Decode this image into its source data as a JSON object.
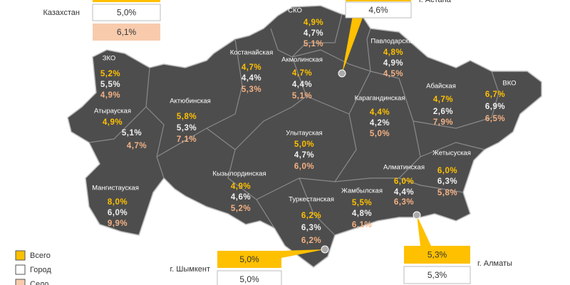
{
  "kazakhstan": {
    "name": "Казахстан",
    "urban": "5,0%",
    "rural": "6,1%"
  },
  "regions": [
    {
      "name": "СКО",
      "total": "4,9%",
      "urban": "4,7%",
      "rural": "5,1%"
    },
    {
      "name": "Костанайская",
      "total": "4,7%",
      "urban": "4,4%",
      "rural": "5,3%"
    },
    {
      "name": "Акмолинская",
      "total": "4,7%",
      "urban": "4,4%",
      "rural": "5,1%"
    },
    {
      "name": "Павлодарская",
      "total": "4,8%",
      "urban": "4,9%",
      "rural": "4,5%"
    },
    {
      "name": "ЗКО",
      "total": "5,2%",
      "urban": "5,5%",
      "rural": "4,9%"
    },
    {
      "name": "Актюбинская",
      "total": "5,8%",
      "urban": "5,3%",
      "rural": "7,1%"
    },
    {
      "name": "Атырауская",
      "total": "4,9%",
      "urban": "5,1%",
      "rural": "4,7%"
    },
    {
      "name": "Абайская",
      "total": "4,7%",
      "urban": "2,6%",
      "rural": "7,9%"
    },
    {
      "name": "ВКО",
      "total": "6,7%",
      "urban": "6,9%",
      "rural": "6,5%"
    },
    {
      "name": "Карагандинская",
      "total": "4,4%",
      "urban": "4,2%",
      "rural": "5,0%"
    },
    {
      "name": "Улытауская",
      "total": "5,0%",
      "urban": "4,7%",
      "rural": "6,0%"
    },
    {
      "name": "Кызылординская",
      "total": "4,9%",
      "urban": "4,6%",
      "rural": "5,2%"
    },
    {
      "name": "Мангистауская",
      "total": "8,0%",
      "urban": "6,0%",
      "rural": "9,9%"
    },
    {
      "name": "Туркестанская",
      "total": "6,2%",
      "urban": "6,3%",
      "rural": "6,2%"
    },
    {
      "name": "Жамбылская",
      "total": "5,5%",
      "urban": "4,8%",
      "rural": "6,1%"
    },
    {
      "name": "Алматинская",
      "total": "6,0%",
      "urban": "4,4%",
      "rural": "6,3%"
    },
    {
      "name": "Жетысуская",
      "total": "6,0%",
      "urban": "6,3%",
      "rural": "5,8%"
    }
  ],
  "cities": [
    {
      "name": "г. Астана",
      "urban": "4,6%"
    },
    {
      "name": "г. Шымкент",
      "total": "5,0%",
      "urban": "5,0%"
    },
    {
      "name": "г. Алматы",
      "total": "5,3%",
      "urban": "5,3%"
    }
  ],
  "legend": [
    "Всего",
    "Город",
    "Село"
  ]
}
